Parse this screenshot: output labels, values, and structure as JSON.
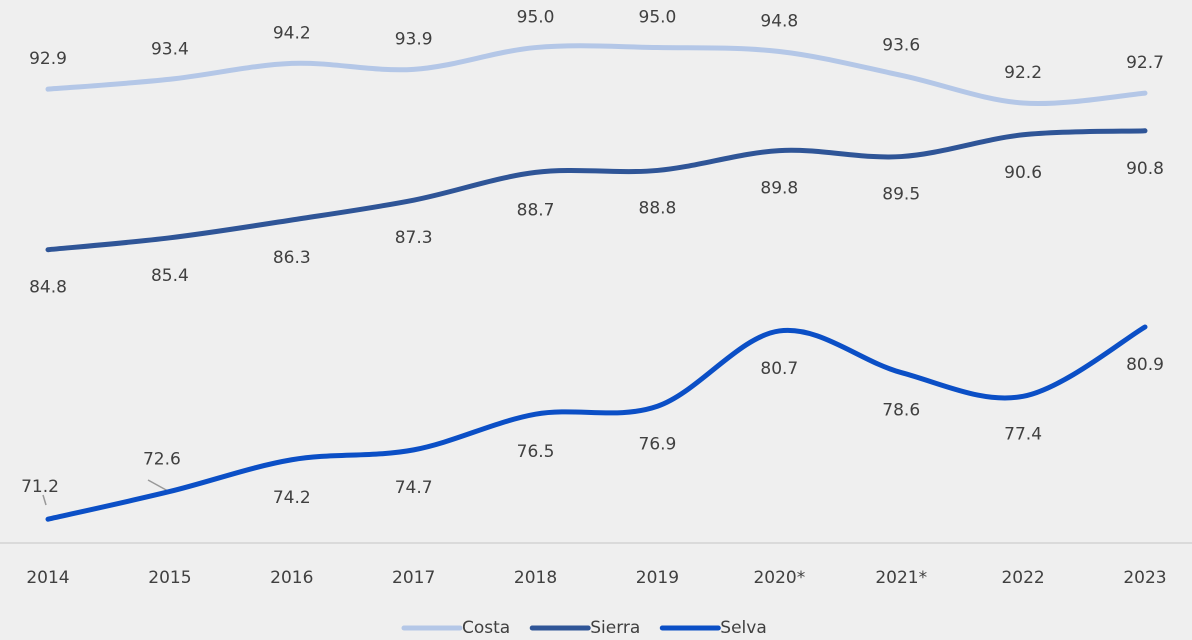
{
  "chart_data": {
    "type": "line",
    "categories": [
      "2014",
      "2015",
      "2016",
      "2017",
      "2018",
      "2019",
      "2020*",
      "2021*",
      "2022",
      "2023"
    ],
    "series": [
      {
        "name": "Costa",
        "color": "#b4c7e7",
        "values": [
          92.9,
          93.4,
          94.2,
          93.9,
          95.0,
          95.0,
          94.8,
          93.6,
          92.2,
          92.7
        ],
        "value_labels": [
          "92.9",
          "93.4",
          "94.2",
          "93.9",
          "95.0",
          "95.0",
          "94.8",
          "93.6",
          "92.2",
          "92.7"
        ]
      },
      {
        "name": "Sierra",
        "color": "#2f5597",
        "values": [
          84.8,
          85.4,
          86.3,
          87.3,
          88.7,
          88.8,
          89.8,
          89.5,
          90.6,
          90.8
        ],
        "value_labels": [
          "84.8",
          "85.4",
          "86.3",
          "87.3",
          "88.7",
          "88.8",
          "89.8",
          "89.5",
          "90.6",
          "90.8"
        ]
      },
      {
        "name": "Selva",
        "color": "#0b4fc6",
        "values": [
          71.2,
          72.6,
          74.2,
          74.7,
          76.5,
          76.9,
          80.7,
          78.6,
          77.4,
          80.9
        ],
        "value_labels": [
          "71.2",
          "72.6",
          "74.2",
          "74.7",
          "76.5",
          "76.9",
          "80.7",
          "78.6",
          "77.4",
          "80.9"
        ]
      }
    ],
    "ylim": [
      70,
      97.4
    ],
    "legend": "bottom"
  }
}
